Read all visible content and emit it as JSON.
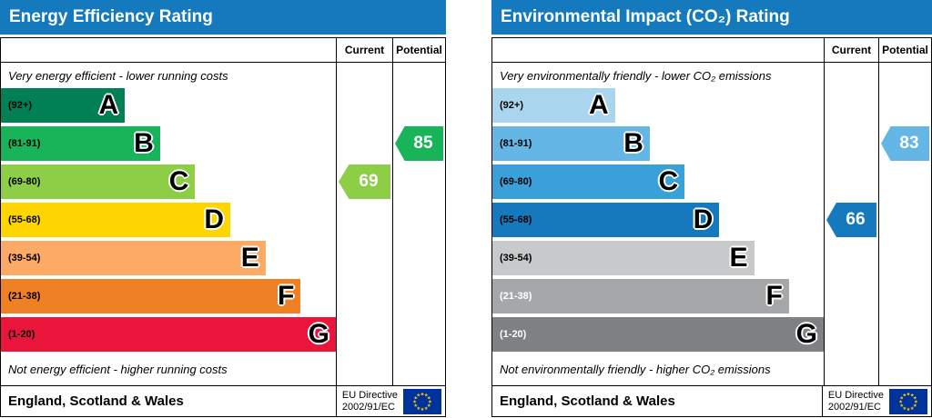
{
  "charts": [
    {
      "title": "Energy Efficiency Rating",
      "header_color": "#1479bd",
      "columns": {
        "current": "Current",
        "potential": "Potential"
      },
      "top_note": "Very energy efficient - lower running costs",
      "bottom_note": "Not energy efficient - higher running costs",
      "bands": [
        {
          "range": "(92+)",
          "letter": "A",
          "color": "#008054",
          "label_color": "#000000"
        },
        {
          "range": "(81-91)",
          "letter": "B",
          "color": "#19b459",
          "label_color": "#000000"
        },
        {
          "range": "(69-80)",
          "letter": "C",
          "color": "#8dce46",
          "label_color": "#000000"
        },
        {
          "range": "(55-68)",
          "letter": "D",
          "color": "#ffd500",
          "label_color": "#000000"
        },
        {
          "range": "(39-54)",
          "letter": "E",
          "color": "#fcaa65",
          "label_color": "#000000"
        },
        {
          "range": "(21-38)",
          "letter": "F",
          "color": "#ef8023",
          "label_color": "#000000"
        },
        {
          "range": "(1-20)",
          "letter": "G",
          "color": "#e9153b",
          "label_color": "#000000"
        }
      ],
      "current": {
        "value": "69",
        "color": "#8dce46",
        "band_index": 2
      },
      "potential": {
        "value": "85",
        "color": "#19b459",
        "band_index": 1
      },
      "footer": {
        "region": "England, Scotland & Wales",
        "directive_line1": "EU Directive",
        "directive_line2": "2002/91/EC"
      }
    },
    {
      "title": "Environmental Impact (CO₂) Rating",
      "header_color": "#1479bd",
      "columns": {
        "current": "Current",
        "potential": "Potential"
      },
      "top_note": "Very environmentally friendly - lower CO₂ emissions",
      "bottom_note": "Not environmentally friendly - higher CO₂ emissions",
      "bands": [
        {
          "range": "(92+)",
          "letter": "A",
          "color": "#a9d5ee",
          "label_color": "#000000"
        },
        {
          "range": "(81-91)",
          "letter": "B",
          "color": "#64b7e5",
          "label_color": "#000000"
        },
        {
          "range": "(69-80)",
          "letter": "C",
          "color": "#3aa0da",
          "label_color": "#000000"
        },
        {
          "range": "(55-68)",
          "letter": "D",
          "color": "#1679bd",
          "label_color": "#000000"
        },
        {
          "range": "(39-54)",
          "letter": "E",
          "color": "#c8c9ca",
          "label_color": "#000000"
        },
        {
          "range": "(21-38)",
          "letter": "F",
          "color": "#a5a7a9",
          "label_color": "#ffffff"
        },
        {
          "range": "(1-20)",
          "letter": "G",
          "color": "#7e8083",
          "label_color": "#ffffff"
        }
      ],
      "current": {
        "value": "66",
        "color": "#1679bd",
        "band_index": 3
      },
      "potential": {
        "value": "83",
        "color": "#64b7e5",
        "band_index": 1
      },
      "footer": {
        "region": "England, Scotland & Wales",
        "directive_line1": "EU Directive",
        "directive_line2": "2002/91/EC"
      }
    }
  ],
  "eu_flag": {
    "background": "#003399",
    "star_color": "#ffcc00"
  },
  "chart_data": [
    {
      "type": "bar",
      "title": "Energy Efficiency Rating",
      "categories": [
        "A (92+)",
        "B (81-91)",
        "C (69-80)",
        "D (55-68)",
        "E (39-54)",
        "F (21-38)",
        "G (1-20)"
      ],
      "scale": [
        1,
        100
      ],
      "current": 69,
      "current_band": "C",
      "potential": 85,
      "potential_band": "B",
      "region": "England, Scotland & Wales",
      "directive": "EU Directive 2002/91/EC"
    },
    {
      "type": "bar",
      "title": "Environmental Impact (CO₂) Rating",
      "categories": [
        "A (92+)",
        "B (81-91)",
        "C (69-80)",
        "D (55-68)",
        "E (39-54)",
        "F (21-38)",
        "G (1-20)"
      ],
      "scale": [
        1,
        100
      ],
      "current": 66,
      "current_band": "D",
      "potential": 83,
      "potential_band": "B",
      "region": "England, Scotland & Wales",
      "directive": "EU Directive 2002/91/EC"
    }
  ]
}
